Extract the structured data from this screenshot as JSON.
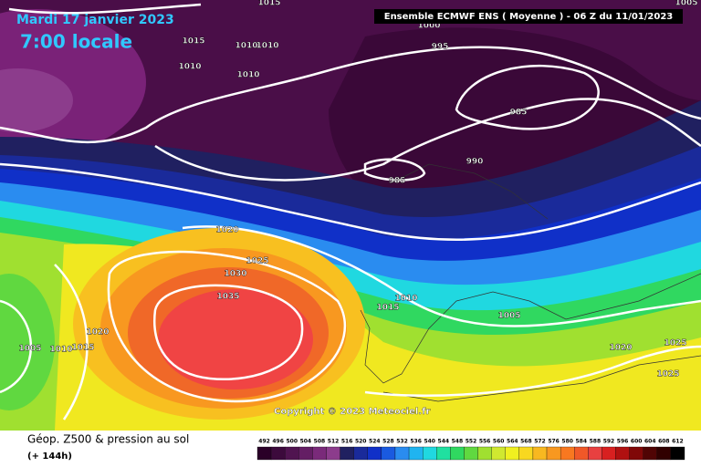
{
  "header": {
    "date": "Mardi 17 janvier 2023",
    "time": "7:00 locale",
    "run": "Ensemble ECMWF ENS  ( Moyenne )  -  06 Z du 11/01/2023"
  },
  "isobar_labels": [
    1015,
    1015,
    1010,
    1010,
    1010,
    1010,
    1000,
    995,
    985,
    990,
    985,
    1020,
    1025,
    1030,
    1035,
    1010,
    1015,
    1005,
    1020,
    1005,
    1010,
    1015,
    1020,
    1025,
    1025,
    1005
  ],
  "copyright": "Copyright © 2023 Meteociel.fr",
  "footer": {
    "title": "Géop. Z500 & pression au sol",
    "lead": "(+ 144h)"
  },
  "legend": {
    "values": [
      492,
      496,
      500,
      504,
      508,
      512,
      516,
      520,
      524,
      528,
      532,
      536,
      540,
      544,
      548,
      552,
      556,
      560,
      564,
      568,
      572,
      576,
      580,
      584,
      588,
      592,
      596,
      600,
      604,
      608,
      612
    ],
    "colors": [
      "#2a0028",
      "#3c0a3c",
      "#501450",
      "#641e64",
      "#7a2a7a",
      "#8c3c8c",
      "#202060",
      "#1a2a9a",
      "#1030c8",
      "#1a5ae0",
      "#2a8cf0",
      "#20b4f0",
      "#20d8e0",
      "#20e0a0",
      "#30d860",
      "#60d840",
      "#a0e030",
      "#d0e830",
      "#f0f020",
      "#f8d820",
      "#f8b820",
      "#f89820",
      "#f87820",
      "#f05828",
      "#e84040",
      "#d82020",
      "#b01010",
      "#800808",
      "#500404",
      "#300000",
      "#000000"
    ]
  }
}
